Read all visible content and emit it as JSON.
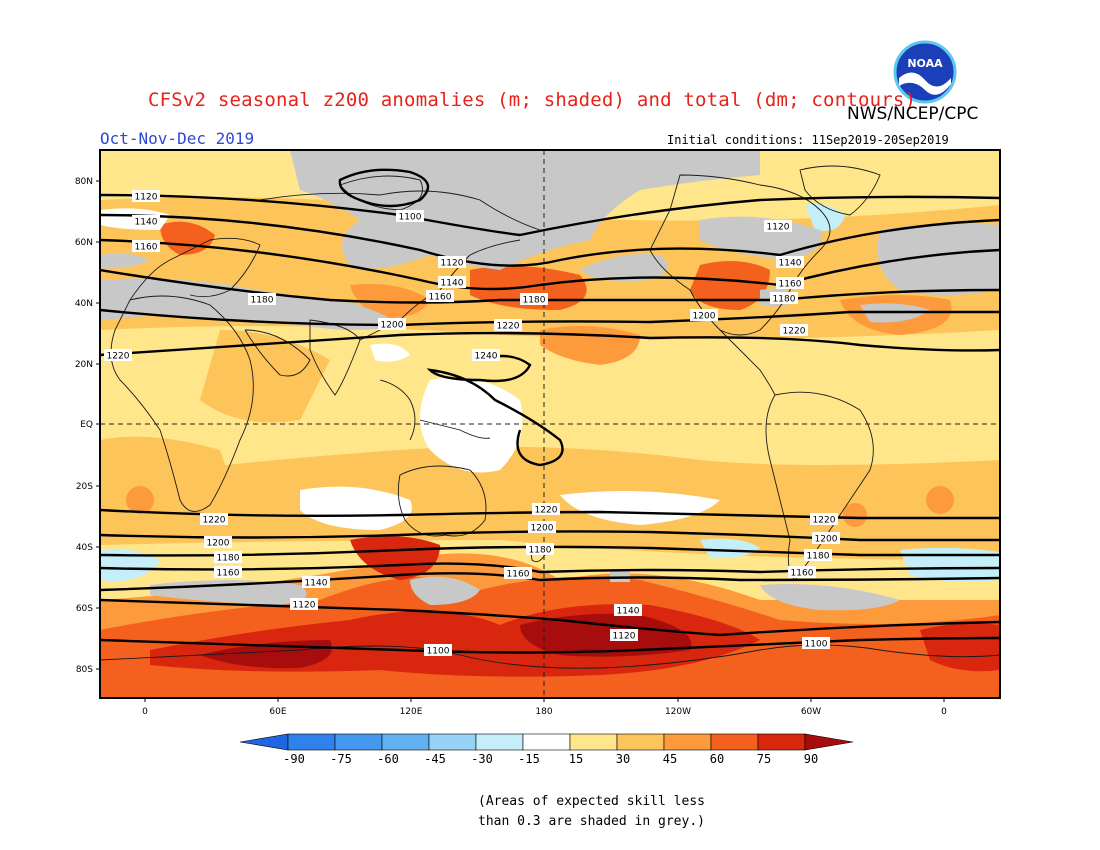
{
  "title": "CFSv2 seasonal z200 anomalies (m; shaded) and total (dm; contours)",
  "agency": "NWS/NCEP/CPC",
  "logo_text": "NOAA",
  "season": "Oct-Nov-Dec 2019",
  "initial_conditions": "Initial conditions: 11Sep2019-20Sep2019",
  "axes": {
    "lat_labels": [
      "80N",
      "60N",
      "40N",
      "20N",
      "EQ",
      "20S",
      "40S",
      "60S",
      "80S"
    ],
    "lon_labels": [
      "0",
      "60E",
      "120E",
      "180",
      "120W",
      "60W",
      "0"
    ]
  },
  "contours": [
    {
      "label": "1100",
      "value": 1100
    },
    {
      "label": "1120",
      "value": 1120
    },
    {
      "label": "1140",
      "value": 1140
    },
    {
      "label": "1160",
      "value": 1160
    },
    {
      "label": "1180",
      "value": 1180
    },
    {
      "label": "1200",
      "value": 1200
    },
    {
      "label": "1220",
      "value": 1220
    },
    {
      "label": "1240",
      "value": 1240
    }
  ],
  "legend": {
    "ticks": [
      "-90",
      "-75",
      "-60",
      "-45",
      "-30",
      "-15",
      "15",
      "30",
      "45",
      "60",
      "75",
      "90"
    ],
    "colors": [
      "#1f66e0",
      "#2f82ec",
      "#4499ee",
      "#62b2f1",
      "#96d2f5",
      "#c4eef8",
      "#ffffff",
      "#ffe68a",
      "#fdc45a",
      "#fc9a3c",
      "#f4601e",
      "#d8260f",
      "#a80d0d"
    ]
  },
  "note": {
    "line1": "(Areas of expected skill less",
    "line2": "than 0.3 are shaded in grey.)"
  },
  "colors": {
    "title": "#e8211a",
    "season": "#2d47d9",
    "grey": "#c8c8c8"
  }
}
